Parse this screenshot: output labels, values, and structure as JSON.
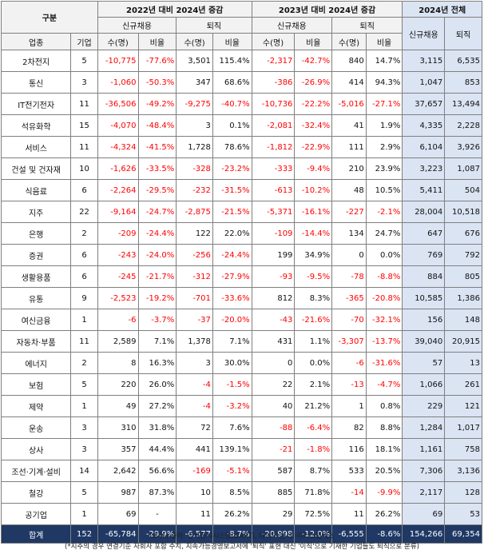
{
  "header": {
    "gubun": "구분",
    "group_2022": "2022년 대비 2024년 증감",
    "group_2023": "2023년 대비 2024년 증감",
    "group_2024": "2024년 전체",
    "new_hire": "신규채용",
    "retire": "퇴직",
    "industry": "업종",
    "firms": "기업",
    "count": "수(명)",
    "ratio": "비율"
  },
  "rows": [
    {
      "industry": "2차전지",
      "firms": "5",
      "c22_new": "-10,775",
      "c22_new_r": "-77.6%",
      "c22_ret": "3,501",
      "c22_ret_r": "115.4%",
      "c23_new": "-2,317",
      "c23_new_r": "-42.7%",
      "c23_ret": "840",
      "c23_ret_r": "14.7%",
      "y24_new": "3,115",
      "y24_ret": "6,535"
    },
    {
      "industry": "통신",
      "firms": "3",
      "c22_new": "-1,060",
      "c22_new_r": "-50.3%",
      "c22_ret": "347",
      "c22_ret_r": "68.6%",
      "c23_new": "-386",
      "c23_new_r": "-26.9%",
      "c23_ret": "414",
      "c23_ret_r": "94.3%",
      "y24_new": "1,047",
      "y24_ret": "853"
    },
    {
      "industry": "IT전기전자",
      "firms": "11",
      "c22_new": "-36,506",
      "c22_new_r": "-49.2%",
      "c22_ret": "-9,275",
      "c22_ret_r": "-40.7%",
      "c23_new": "-10,736",
      "c23_new_r": "-22.2%",
      "c23_ret": "-5,016",
      "c23_ret_r": "-27.1%",
      "y24_new": "37,657",
      "y24_ret": "13,494"
    },
    {
      "industry": "석유화학",
      "firms": "15",
      "c22_new": "-4,070",
      "c22_new_r": "-48.4%",
      "c22_ret": "3",
      "c22_ret_r": "0.1%",
      "c23_new": "-2,081",
      "c23_new_r": "-32.4%",
      "c23_ret": "41",
      "c23_ret_r": "1.9%",
      "y24_new": "4,335",
      "y24_ret": "2,228"
    },
    {
      "industry": "서비스",
      "firms": "11",
      "c22_new": "-4,324",
      "c22_new_r": "-41.5%",
      "c22_ret": "1,728",
      "c22_ret_r": "78.6%",
      "c23_new": "-1,812",
      "c23_new_r": "-22.9%",
      "c23_ret": "111",
      "c23_ret_r": "2.9%",
      "y24_new": "6,104",
      "y24_ret": "3,926"
    },
    {
      "industry": "건설 및 건자재",
      "firms": "10",
      "c22_new": "-1,626",
      "c22_new_r": "-33.5%",
      "c22_ret": "-328",
      "c22_ret_r": "-23.2%",
      "c23_new": "-333",
      "c23_new_r": "-9.4%",
      "c23_ret": "210",
      "c23_ret_r": "23.9%",
      "y24_new": "3,223",
      "y24_ret": "1,087"
    },
    {
      "industry": "식음료",
      "firms": "6",
      "c22_new": "-2,264",
      "c22_new_r": "-29.5%",
      "c22_ret": "-232",
      "c22_ret_r": "-31.5%",
      "c23_new": "-613",
      "c23_new_r": "-10.2%",
      "c23_ret": "48",
      "c23_ret_r": "10.5%",
      "y24_new": "5,411",
      "y24_ret": "504"
    },
    {
      "industry": "지주",
      "firms": "22",
      "c22_new": "-9,164",
      "c22_new_r": "-24.7%",
      "c22_ret": "-2,875",
      "c22_ret_r": "-21.5%",
      "c23_new": "-5,371",
      "c23_new_r": "-16.1%",
      "c23_ret": "-227",
      "c23_ret_r": "-2.1%",
      "y24_new": "28,004",
      "y24_ret": "10,518"
    },
    {
      "industry": "은행",
      "firms": "2",
      "c22_new": "-209",
      "c22_new_r": "-24.4%",
      "c22_ret": "122",
      "c22_ret_r": "22.0%",
      "c23_new": "-109",
      "c23_new_r": "-14.4%",
      "c23_ret": "134",
      "c23_ret_r": "24.7%",
      "y24_new": "647",
      "y24_ret": "676"
    },
    {
      "industry": "증권",
      "firms": "6",
      "c22_new": "-243",
      "c22_new_r": "-24.0%",
      "c22_ret": "-256",
      "c22_ret_r": "-24.4%",
      "c23_new": "199",
      "c23_new_r": "34.9%",
      "c23_ret": "0",
      "c23_ret_r": "0.0%",
      "y24_new": "769",
      "y24_ret": "792"
    },
    {
      "industry": "생활용품",
      "firms": "6",
      "c22_new": "-245",
      "c22_new_r": "-21.7%",
      "c22_ret": "-312",
      "c22_ret_r": "-27.9%",
      "c23_new": "-93",
      "c23_new_r": "-9.5%",
      "c23_ret": "-78",
      "c23_ret_r": "-8.8%",
      "y24_new": "884",
      "y24_ret": "805"
    },
    {
      "industry": "유통",
      "firms": "9",
      "c22_new": "-2,523",
      "c22_new_r": "-19.2%",
      "c22_ret": "-701",
      "c22_ret_r": "-33.6%",
      "c23_new": "812",
      "c23_new_r": "8.3%",
      "c23_ret": "-365",
      "c23_ret_r": "-20.8%",
      "y24_new": "10,585",
      "y24_ret": "1,386"
    },
    {
      "industry": "여신금융",
      "firms": "1",
      "c22_new": "-6",
      "c22_new_r": "-3.7%",
      "c22_ret": "-37",
      "c22_ret_r": "-20.0%",
      "c23_new": "-43",
      "c23_new_r": "-21.6%",
      "c23_ret": "-70",
      "c23_ret_r": "-32.1%",
      "y24_new": "156",
      "y24_ret": "148"
    },
    {
      "industry": "자동차·부품",
      "firms": "11",
      "c22_new": "2,589",
      "c22_new_r": "7.1%",
      "c22_ret": "1,378",
      "c22_ret_r": "7.1%",
      "c23_new": "431",
      "c23_new_r": "1.1%",
      "c23_ret": "-3,307",
      "c23_ret_r": "-13.7%",
      "y24_new": "39,040",
      "y24_ret": "20,915"
    },
    {
      "industry": "에너지",
      "firms": "2",
      "c22_new": "8",
      "c22_new_r": "16.3%",
      "c22_ret": "3",
      "c22_ret_r": "30.0%",
      "c23_new": "0",
      "c23_new_r": "0.0%",
      "c23_ret": "-6",
      "c23_ret_r": "-31.6%",
      "y24_new": "57",
      "y24_ret": "13"
    },
    {
      "industry": "보험",
      "firms": "5",
      "c22_new": "220",
      "c22_new_r": "26.0%",
      "c22_ret": "-4",
      "c22_ret_r": "-1.5%",
      "c23_new": "22",
      "c23_new_r": "2.1%",
      "c23_ret": "-13",
      "c23_ret_r": "-4.7%",
      "y24_new": "1,066",
      "y24_ret": "261"
    },
    {
      "industry": "제약",
      "firms": "1",
      "c22_new": "49",
      "c22_new_r": "27.2%",
      "c22_ret": "-4",
      "c22_ret_r": "-3.2%",
      "c23_new": "40",
      "c23_new_r": "21.2%",
      "c23_ret": "1",
      "c23_ret_r": "0.8%",
      "y24_new": "229",
      "y24_ret": "121"
    },
    {
      "industry": "운송",
      "firms": "3",
      "c22_new": "310",
      "c22_new_r": "31.8%",
      "c22_ret": "72",
      "c22_ret_r": "7.6%",
      "c23_new": "-88",
      "c23_new_r": "-6.4%",
      "c23_ret": "82",
      "c23_ret_r": "8.8%",
      "y24_new": "1,284",
      "y24_ret": "1,017"
    },
    {
      "industry": "상사",
      "firms": "3",
      "c22_new": "357",
      "c22_new_r": "44.4%",
      "c22_ret": "441",
      "c22_ret_r": "139.1%",
      "c23_new": "-21",
      "c23_new_r": "-1.8%",
      "c23_ret": "116",
      "c23_ret_r": "18.1%",
      "y24_new": "1,161",
      "y24_ret": "758"
    },
    {
      "industry": "조선·기계·설비",
      "firms": "14",
      "c22_new": "2,642",
      "c22_new_r": "56.6%",
      "c22_ret": "-169",
      "c22_ret_r": "-5.1%",
      "c23_new": "587",
      "c23_new_r": "8.7%",
      "c23_ret": "533",
      "c23_ret_r": "20.5%",
      "y24_new": "7,306",
      "y24_ret": "3,136"
    },
    {
      "industry": "철강",
      "firms": "5",
      "c22_new": "987",
      "c22_new_r": "87.3%",
      "c22_ret": "10",
      "c22_ret_r": "8.5%",
      "c23_new": "885",
      "c23_new_r": "71.8%",
      "c23_ret": "-14",
      "c23_ret_r": "-9.9%",
      "y24_new": "2,117",
      "y24_ret": "128"
    },
    {
      "industry": "공기업",
      "firms": "1",
      "c22_new": "69",
      "c22_new_r": "-",
      "c22_ret": "11",
      "c22_ret_r": "26.2%",
      "c23_new": "29",
      "c23_new_r": "72.5%",
      "c23_ret": "11",
      "c23_ret_r": "26.2%",
      "y24_new": "69",
      "y24_ret": "53"
    }
  ],
  "total": {
    "industry": "합계",
    "firms": "152",
    "c22_new": "-65,784",
    "c22_new_r": "-29.9%",
    "c22_ret": "-6,577",
    "c22_ret_r": "-8.7%",
    "c23_new": "-20,998",
    "c23_new_r": "-12.0%",
    "c23_ret": "-6,555",
    "c23_ret_r": "-8.6%",
    "y24_new": "154,266",
    "y24_ret": "69,354"
  },
  "notes": {
    "source": "데이터 출처: 전자공시시스템(DART), 데이터 분석: 리더스인덱스",
    "footnote": "(*지주의 경우 연결기준 자회사 포함 수치, 지속가능경영보고서에 '퇴직' 표현 대신 '이직'으로 기재한 기업들도 퇴직으로 분류)"
  },
  "colors": {
    "negative": "#ff0000",
    "blue_fill": "#dbe4f3",
    "total_fill": "#1f3864",
    "header_fill": "#f2f2f2"
  }
}
